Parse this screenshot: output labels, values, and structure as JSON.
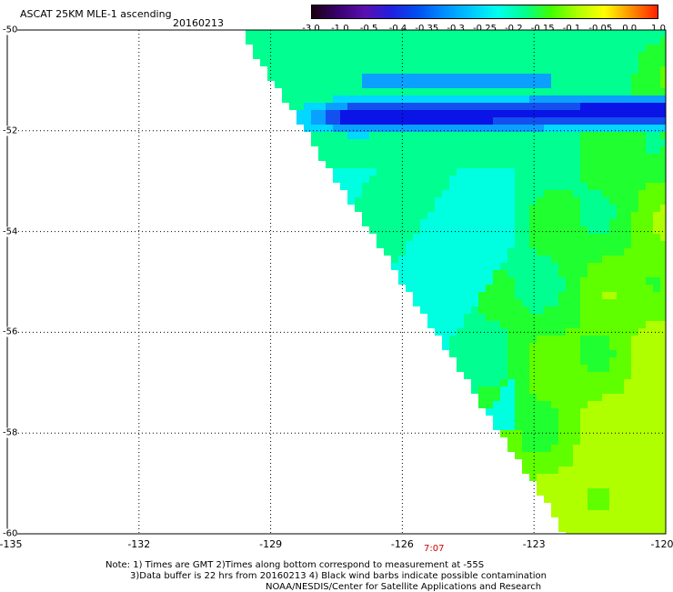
{
  "header": {
    "title": "ASCAT 25KM MLE-1 ascending",
    "date": "20160213"
  },
  "colorbar": {
    "tick_labels": [
      "-3.0",
      "-1.0",
      "-0.5",
      "-0.4",
      "-0.35",
      "-0.3",
      "-0.25",
      "-0.2",
      "-0.15",
      "-0.1",
      "-0.05",
      "0.0",
      "1.0"
    ],
    "colors": [
      "#1a0010",
      "#3a0070",
      "#5a10b0",
      "#2020e0",
      "#0050f0",
      "#0090ff",
      "#00c8ff",
      "#00ffee",
      "#00ff90",
      "#40ff00",
      "#b0ff00",
      "#ffff00",
      "#ff9000",
      "#ff2000"
    ]
  },
  "axes": {
    "lat_labels": [
      "-50",
      "-52",
      "-54",
      "-56",
      "-58",
      "-60"
    ],
    "lon_labels": [
      "-135",
      "-132",
      "-129",
      "-126",
      "-123",
      "-120"
    ]
  },
  "time_label": "7:07",
  "notes": [
    "Note: 1) Times are GMT 2)Times along bottom correspond to measurement at -55S",
    "3)Data buffer is 22 hrs from 20160213 4) Black wind barbs indicate possible contamination",
    "NOAA/NESDIS/Center for Satellite Applications and Research"
  ]
}
